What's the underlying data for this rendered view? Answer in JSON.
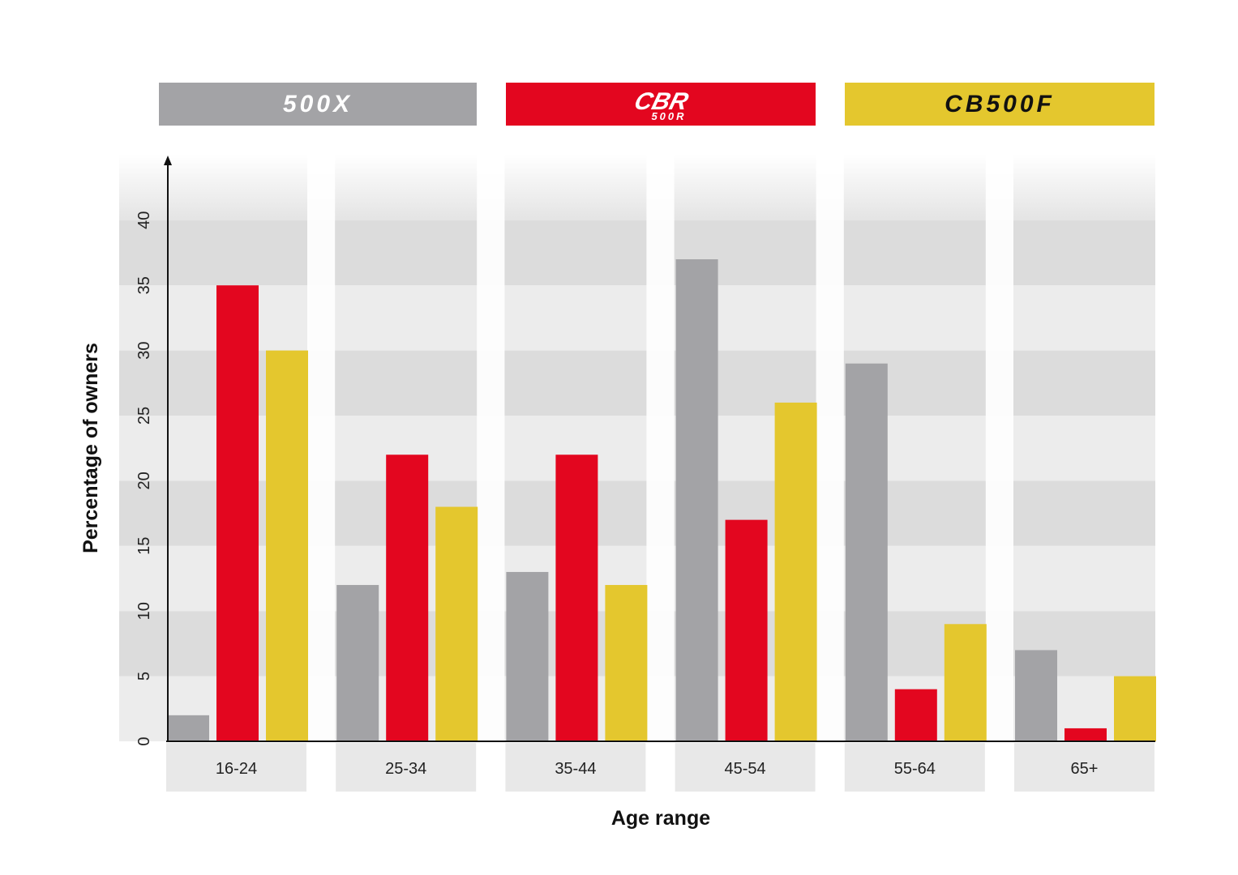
{
  "chart_data": {
    "type": "bar",
    "title": "",
    "xlabel": "Age range",
    "ylabel": "Percentage of owners",
    "ylim": [
      0,
      45
    ],
    "yticks": [
      0,
      5,
      10,
      15,
      20,
      25,
      30,
      35,
      40
    ],
    "grid": "alternating horizontal bands",
    "legend_position": "top",
    "categories": [
      "16-24",
      "25-34",
      "35-44",
      "45-54",
      "55-64",
      "65+"
    ],
    "series": [
      {
        "name": "500X",
        "subtitle": "",
        "color": "#a3a3a6",
        "text_color": "#ffffff",
        "values": [
          2,
          12,
          13,
          37,
          29,
          7
        ]
      },
      {
        "name": "CBR",
        "subtitle": "500R",
        "color": "#e3061f",
        "text_color": "#ffffff",
        "values": [
          35,
          22,
          22,
          17,
          4,
          1
        ]
      },
      {
        "name": "CB500F",
        "subtitle": "",
        "color": "#e4c72e",
        "text_color": "#111111",
        "values": [
          30,
          18,
          12,
          26,
          9,
          5
        ]
      }
    ]
  }
}
